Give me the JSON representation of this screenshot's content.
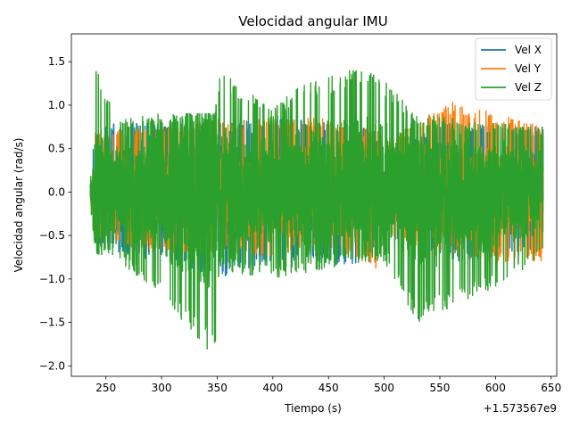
{
  "chart_data": {
    "type": "line",
    "title": "Velocidad angular IMU",
    "xlabel": "Tiempo (s)",
    "ylabel": "Velocidad angular (rad/s)",
    "x_offset_label": "+1.573567e9",
    "xlim": [
      219,
      655
    ],
    "ylim": [
      -2.12,
      1.82
    ],
    "x_ticks": [
      250,
      300,
      350,
      400,
      450,
      500,
      550,
      600,
      650
    ],
    "y_ticks": [
      1.5,
      1.0,
      0.5,
      0.0,
      -0.5,
      -1.0,
      -1.5,
      -2.0
    ],
    "x_tick_labels": [
      "250",
      "300",
      "350",
      "400",
      "450",
      "500",
      "550",
      "600",
      "650"
    ],
    "y_tick_labels": [
      "1.5",
      "1.0",
      "0.5",
      "0.0",
      "−0.5",
      "−1.0",
      "−1.5",
      "−2.0"
    ],
    "legend_position": "top-right",
    "x_start": 236,
    "x_end": 643,
    "series": [
      {
        "name": "Vel X",
        "color": "#1f77b4",
        "envelope": [
          {
            "x": 236,
            "min": -0.2,
            "max": 0.1
          },
          {
            "x": 240,
            "min": -0.6,
            "max": 0.7
          },
          {
            "x": 260,
            "min": -0.7,
            "max": 0.8
          },
          {
            "x": 300,
            "min": -0.8,
            "max": 0.8
          },
          {
            "x": 348,
            "min": -1.0,
            "max": 0.8
          },
          {
            "x": 400,
            "min": -0.8,
            "max": 0.85
          },
          {
            "x": 480,
            "min": -0.85,
            "max": 0.8
          },
          {
            "x": 500,
            "min": -0.5,
            "max": 0.5
          },
          {
            "x": 560,
            "min": -0.8,
            "max": 0.8
          },
          {
            "x": 643,
            "min": -0.7,
            "max": 0.75
          }
        ]
      },
      {
        "name": "Vel Y",
        "color": "#ff7f0e",
        "envelope": [
          {
            "x": 236,
            "min": -0.1,
            "max": 0.1
          },
          {
            "x": 240,
            "min": -0.55,
            "max": 0.7
          },
          {
            "x": 300,
            "min": -0.7,
            "max": 0.75
          },
          {
            "x": 345,
            "min": -0.7,
            "max": 0.85
          },
          {
            "x": 400,
            "min": -0.75,
            "max": 0.85
          },
          {
            "x": 445,
            "min": -0.6,
            "max": 0.85
          },
          {
            "x": 497,
            "min": -0.9,
            "max": 0.7
          },
          {
            "x": 503,
            "min": -0.5,
            "max": 0.6
          },
          {
            "x": 560,
            "min": -0.8,
            "max": 1.05
          },
          {
            "x": 643,
            "min": -0.8,
            "max": 0.75
          }
        ]
      },
      {
        "name": "Vel Z",
        "color": "#2ca02c",
        "envelope": [
          {
            "x": 236,
            "min": -0.2,
            "max": 0.05
          },
          {
            "x": 241,
            "min": -0.7,
            "max": 1.45
          },
          {
            "x": 260,
            "min": -0.8,
            "max": 0.85
          },
          {
            "x": 300,
            "min": -1.2,
            "max": 0.9
          },
          {
            "x": 348,
            "min": -1.95,
            "max": 0.9
          },
          {
            "x": 352,
            "min": -0.9,
            "max": 1.4
          },
          {
            "x": 400,
            "min": -1.0,
            "max": 0.95
          },
          {
            "x": 420,
            "min": -0.95,
            "max": 1.2
          },
          {
            "x": 482,
            "min": -0.8,
            "max": 1.45
          },
          {
            "x": 500,
            "min": -0.8,
            "max": 1.3
          },
          {
            "x": 530,
            "min": -1.5,
            "max": 0.9
          },
          {
            "x": 600,
            "min": -1.1,
            "max": 0.8
          },
          {
            "x": 643,
            "min": -0.75,
            "max": 0.75
          }
        ]
      }
    ]
  }
}
